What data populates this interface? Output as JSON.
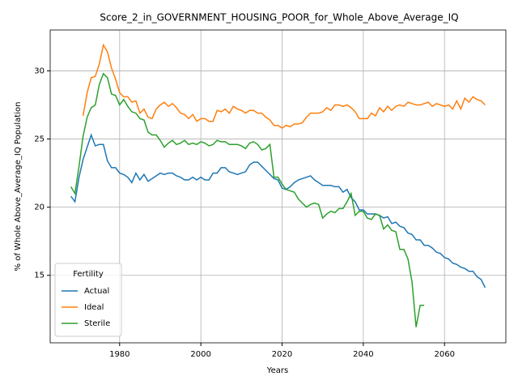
{
  "chart_data": {
    "type": "line",
    "title": "Score_2_in_GOVERNMENT_HOUSING_POOR_for_Whole_Above_Average_IQ",
    "xlabel": "Years",
    "ylabel": "% of Whole Above_Average_IQ Population",
    "legend_title": "Fertility",
    "legend": "lower left",
    "grid": true,
    "xlim": [
      1962.9,
      2075.1
    ],
    "ylim": [
      10.05,
      33
    ],
    "xticks": [
      1980,
      2000,
      2020,
      2040,
      2060
    ],
    "yticks": [
      15,
      20,
      25,
      30
    ],
    "x": [
      1968,
      1969,
      1970,
      1971,
      1972,
      1973,
      1974,
      1975,
      1976,
      1977,
      1978,
      1979,
      1980,
      1981,
      1982,
      1983,
      1984,
      1985,
      1986,
      1987,
      1988,
      1989,
      1990,
      1991,
      1992,
      1993,
      1994,
      1995,
      1996,
      1997,
      1998,
      1999,
      2000,
      2001,
      2002,
      2003,
      2004,
      2005,
      2006,
      2007,
      2008,
      2009,
      2010,
      2011,
      2012,
      2013,
      2014,
      2015,
      2016,
      2017,
      2018,
      2019,
      2020,
      2021,
      2022,
      2023,
      2024,
      2025,
      2026,
      2027,
      2028,
      2029,
      2030,
      2031,
      2032,
      2033,
      2034,
      2035,
      2036,
      2037,
      2038,
      2039,
      2040,
      2041,
      2042,
      2043,
      2044,
      2045,
      2046,
      2047,
      2048,
      2049,
      2050,
      2051,
      2052,
      2053,
      2054,
      2055,
      2056,
      2057,
      2058,
      2059,
      2060,
      2061,
      2062,
      2063,
      2064,
      2065,
      2066,
      2067,
      2068,
      2069,
      2070
    ],
    "series": [
      {
        "name": "Actual",
        "color": "#1f77b4",
        "values": [
          20.8,
          20.4,
          22.2,
          23.5,
          24.4,
          25.3,
          24.5,
          24.6,
          24.6,
          23.4,
          22.9,
          22.9,
          22.5,
          22.4,
          22.2,
          21.8,
          22.5,
          22.0,
          22.4,
          21.9,
          22.1,
          22.3,
          22.5,
          22.4,
          22.5,
          22.5,
          22.3,
          22.2,
          22.0,
          22.0,
          22.2,
          22.0,
          22.2,
          22.0,
          22.0,
          22.5,
          22.5,
          22.9,
          22.9,
          22.6,
          22.5,
          22.4,
          22.5,
          22.6,
          23.1,
          23.3,
          23.3,
          23.0,
          22.7,
          22.4,
          22.1,
          22.0,
          21.4,
          21.3,
          21.5,
          21.8,
          22.0,
          22.1,
          22.2,
          22.3,
          22.0,
          21.8,
          21.6,
          21.6,
          21.6,
          21.5,
          21.5,
          21.1,
          21.3,
          20.7,
          20.4,
          19.8,
          19.8,
          19.5,
          19.5,
          19.5,
          19.4,
          19.2,
          19.3,
          18.8,
          18.9,
          18.6,
          18.5,
          18.1,
          18.0,
          17.6,
          17.6,
          17.2,
          17.2,
          17.0,
          16.7,
          16.6,
          16.3,
          16.2,
          15.9,
          15.8,
          15.6,
          15.5,
          15.3,
          15.3,
          14.9,
          14.7,
          14.1
        ]
      },
      {
        "name": "Ideal",
        "color": "#ff7f0e",
        "values": [
          null,
          null,
          null,
          26.7,
          28.4,
          29.5,
          29.6,
          30.5,
          31.9,
          31.4,
          30.2,
          29.4,
          28.4,
          28.1,
          28.1,
          27.7,
          27.8,
          26.9,
          27.2,
          26.6,
          26.5,
          27.2,
          27.5,
          27.7,
          27.4,
          27.6,
          27.3,
          26.9,
          26.8,
          26.5,
          26.8,
          26.3,
          26.5,
          26.5,
          26.3,
          26.3,
          27.1,
          27.0,
          27.2,
          26.9,
          27.4,
          27.2,
          27.1,
          26.9,
          27.1,
          27.1,
          26.9,
          26.9,
          26.6,
          26.4,
          26.0,
          26.0,
          25.8,
          26.0,
          25.9,
          26.1,
          26.1,
          26.2,
          26.6,
          26.9,
          26.9,
          26.9,
          27.0,
          27.3,
          27.1,
          27.5,
          27.5,
          27.4,
          27.5,
          27.3,
          27.0,
          26.5,
          26.5,
          26.5,
          26.9,
          26.7,
          27.3,
          27.0,
          27.4,
          27.1,
          27.4,
          27.5,
          27.4,
          27.7,
          27.6,
          27.5,
          27.5,
          27.6,
          27.7,
          27.4,
          27.6,
          27.5,
          27.4,
          27.5,
          27.2,
          27.8,
          27.2,
          28.0,
          27.7,
          28.1,
          27.9,
          27.8,
          27.5
        ]
      },
      {
        "name": "Sterile",
        "color": "#2ca02c",
        "values": [
          21.5,
          21.0,
          23.0,
          25.2,
          26.6,
          27.3,
          27.5,
          29.0,
          29.8,
          29.5,
          28.3,
          28.2,
          27.5,
          27.9,
          27.4,
          27.0,
          26.9,
          26.5,
          26.4,
          25.5,
          25.3,
          25.3,
          24.9,
          24.4,
          24.7,
          24.9,
          24.6,
          24.7,
          24.9,
          24.6,
          24.7,
          24.6,
          24.8,
          24.7,
          24.5,
          24.6,
          24.9,
          24.8,
          24.8,
          24.6,
          24.6,
          24.6,
          24.5,
          24.3,
          24.7,
          24.8,
          24.6,
          24.2,
          24.3,
          24.6,
          22.2,
          22.2,
          21.7,
          21.3,
          21.2,
          21.1,
          20.6,
          20.3,
          20.0,
          20.2,
          20.3,
          20.2,
          19.2,
          19.5,
          19.7,
          19.6,
          19.9,
          19.9,
          20.4,
          21.0,
          19.4,
          19.7,
          19.7,
          19.2,
          19.1,
          19.5,
          19.4,
          18.4,
          18.7,
          18.3,
          18.2,
          16.9,
          16.9,
          16.2,
          14.5,
          11.2,
          12.8,
          12.8,
          null,
          null,
          null,
          null,
          null,
          null,
          null,
          null,
          null,
          null,
          null,
          null,
          null,
          null,
          null
        ]
      }
    ]
  }
}
